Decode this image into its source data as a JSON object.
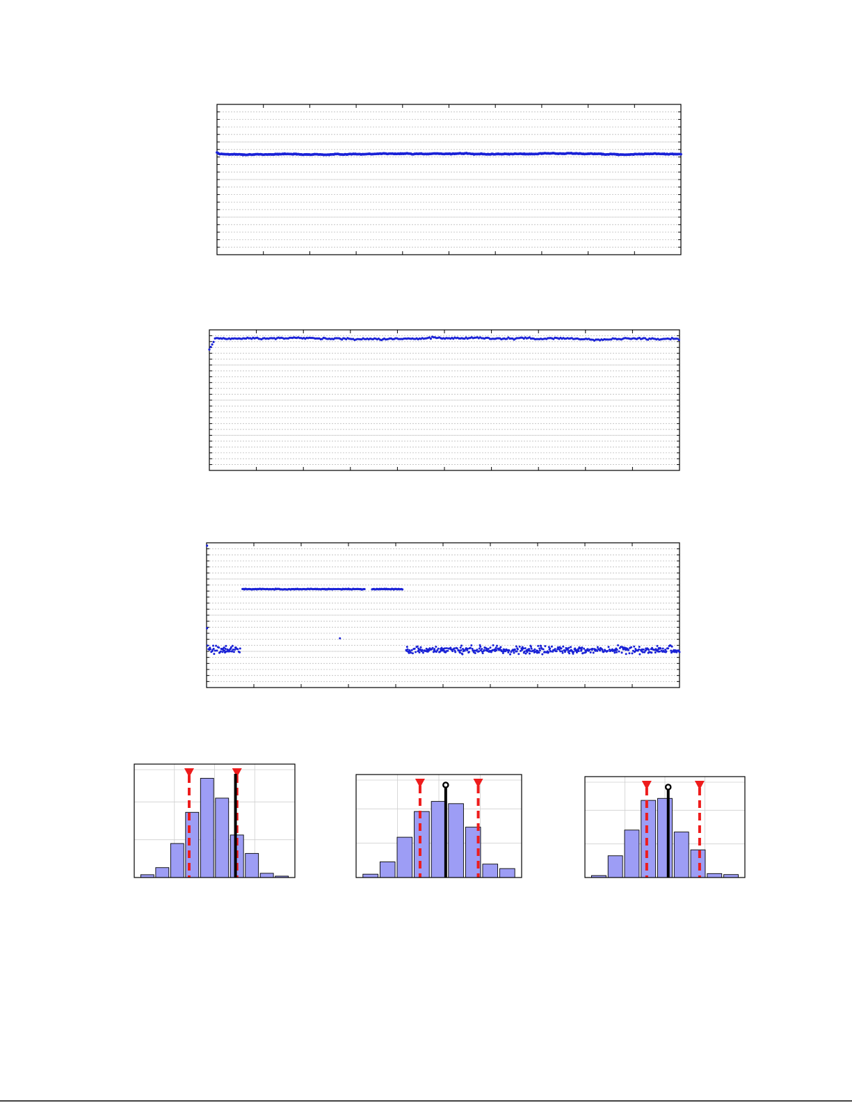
{
  "colors": {
    "series": "#1a22d6",
    "bar": "#9d9df5",
    "bound": "#ee1c1c",
    "mean": "#000000"
  },
  "chart_data": [
    {
      "type": "scatter",
      "grid": true,
      "xlim": [
        0,
        1000
      ],
      "ylim": [
        0,
        1
      ],
      "pattern": "flat",
      "level": 0.67,
      "noise": 0.006,
      "x_ticks": 10,
      "y_minor": 20
    },
    {
      "type": "scatter",
      "grid": true,
      "xlim": [
        0,
        1000
      ],
      "ylim": [
        0,
        1
      ],
      "pattern": "rise",
      "level": 0.94,
      "noise": 0.008,
      "x_ticks": 10,
      "y_minor": 24
    },
    {
      "type": "scatter",
      "grid": true,
      "xlim": [
        0,
        1000
      ],
      "ylim": [
        0,
        1
      ],
      "pattern": "split",
      "level_high": 0.68,
      "level_low": 0.26,
      "segment_high": [
        [
          75,
          335
        ],
        [
          350,
          415
        ]
      ],
      "x_ticks": 10,
      "y_minor": 24
    },
    {
      "type": "bar",
      "grid": true,
      "values": [
        2,
        7,
        24,
        46,
        70,
        56,
        30,
        17,
        3,
        1
      ],
      "ylim": [
        0,
        80
      ],
      "lower_bound_bin": 3.3,
      "upper_bound_bin": 6.5,
      "mean_bin": 6.4,
      "mean_marker": "triangle"
    },
    {
      "type": "bar",
      "grid": true,
      "values": [
        3,
        14,
        36,
        59,
        68,
        66,
        45,
        12,
        8
      ],
      "ylim": [
        0,
        92
      ],
      "lower_bound_bin": 3.4,
      "upper_bound_bin": 6.8,
      "mean_bin": 4.9,
      "mean_marker": "circle"
    },
    {
      "type": "bar",
      "grid": true,
      "values": [
        2,
        22,
        48,
        78,
        80,
        46,
        28,
        4,
        3
      ],
      "ylim": [
        0,
        102
      ],
      "lower_bound_bin": 3.4,
      "upper_bound_bin": 6.6,
      "mean_bin": 4.7,
      "mean_marker": "circle"
    }
  ]
}
